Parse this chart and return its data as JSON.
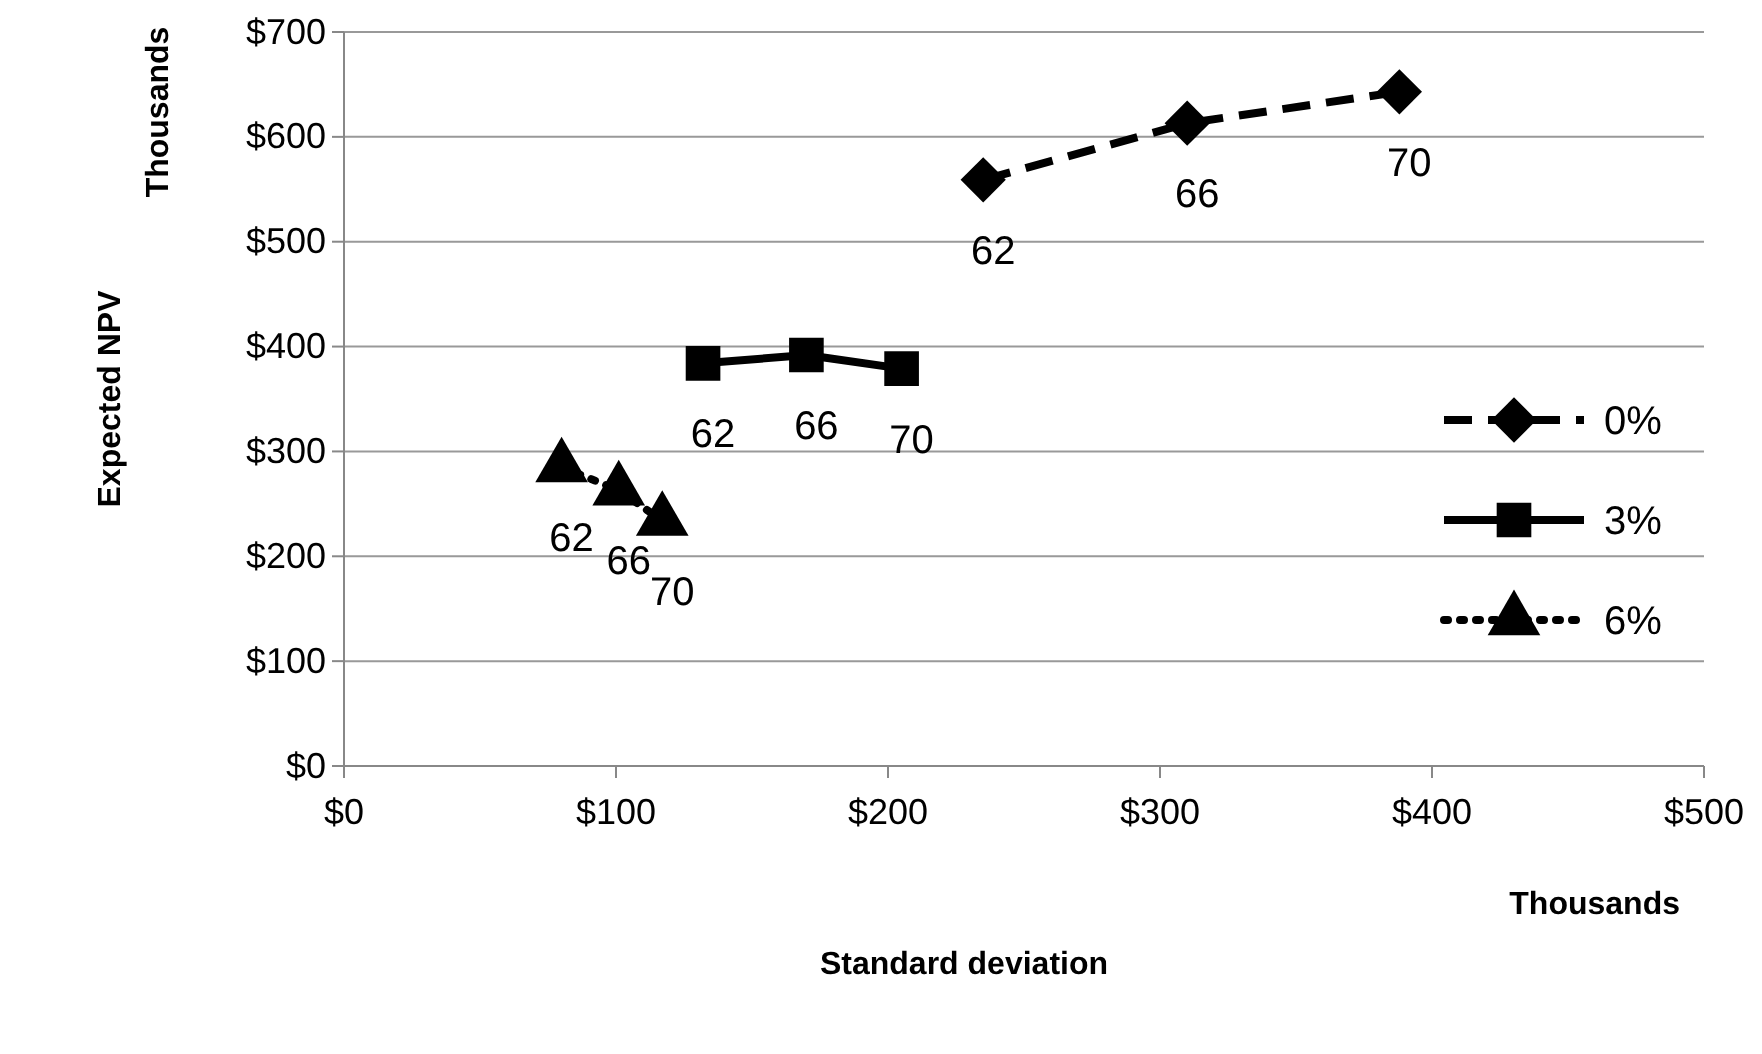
{
  "chart_data": {
    "type": "line",
    "xlabel": "Standard deviation",
    "ylabel": "Expected NPV",
    "xlim": [
      0,
      500
    ],
    "xticks": [
      {
        "value": 0,
        "label": "$0"
      },
      {
        "value": 100,
        "label": "$100"
      },
      {
        "value": 200,
        "label": "$200"
      },
      {
        "value": 300,
        "label": "$300"
      },
      {
        "value": 400,
        "label": "$400"
      },
      {
        "value": 500,
        "label": "$500"
      }
    ],
    "ylim": [
      0,
      700
    ],
    "yticks": [
      {
        "value": 0,
        "label": "$0"
      },
      {
        "value": 100,
        "label": "$100"
      },
      {
        "value": 200,
        "label": "$200"
      },
      {
        "value": 300,
        "label": "$300"
      },
      {
        "value": 400,
        "label": "$400"
      },
      {
        "value": 500,
        "label": "$500"
      },
      {
        "value": 600,
        "label": "$600"
      },
      {
        "value": 700,
        "label": "$700"
      }
    ],
    "grid": "y",
    "legend": "right",
    "series": [
      {
        "name": "0%",
        "color": "#000000",
        "marker": "diamond",
        "line_style": "dashed",
        "x": [
          235,
          310,
          388
        ],
        "values": [
          559,
          613,
          643
        ]
      },
      {
        "name": "3%",
        "color": "#000000",
        "marker": "square",
        "line_style": "solid",
        "x": [
          132,
          170,
          205
        ],
        "values": [
          384,
          392,
          379
        ]
      },
      {
        "name": "6%",
        "color": "#000000",
        "marker": "triangle",
        "line_style": "dotted",
        "x": [
          80,
          101,
          117
        ],
        "values": [
          285,
          263,
          234
        ]
      }
    ],
    "annotations": [
      "Thousands",
      "Thousands",
      {
        "text": "62",
        "x": 235,
        "y": 559
      },
      {
        "text": "66",
        "x": 310,
        "y": 613
      },
      {
        "text": "70",
        "x": 388,
        "y": 643
      },
      {
        "text": "62",
        "x": 132,
        "y": 384
      },
      {
        "text": "66",
        "x": 170,
        "y": 392
      },
      {
        "text": "70",
        "x": 205,
        "y": 379
      },
      {
        "text": "62",
        "x": 80,
        "y": 285
      },
      {
        "text": "66",
        "x": 101,
        "y": 263
      },
      {
        "text": "70",
        "x": 117,
        "y": 234
      }
    ]
  }
}
